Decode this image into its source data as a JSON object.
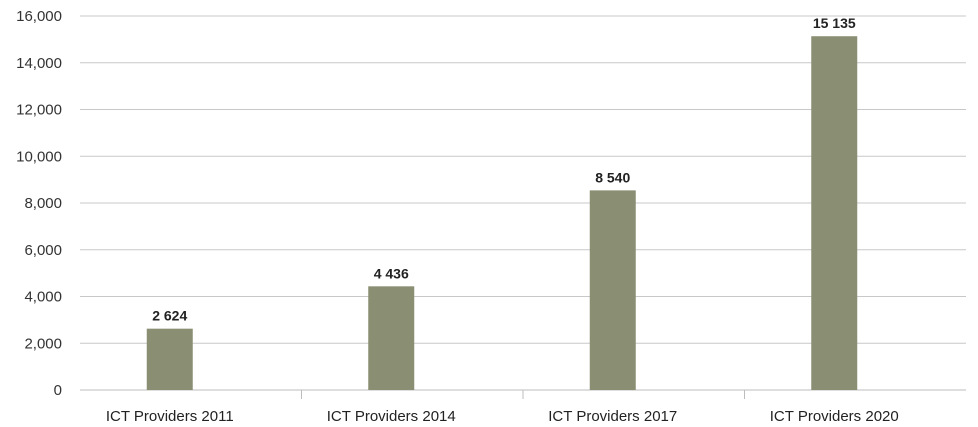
{
  "chart_data": {
    "type": "bar",
    "categories": [
      "ICT Providers 2011",
      "ICT Providers 2014",
      "ICT Providers 2017",
      "ICT Providers 2020"
    ],
    "values": [
      2624,
      4436,
      8540,
      15135
    ],
    "data_labels": [
      "2 624",
      "4 436",
      "8 540",
      "15 135"
    ],
    "y_ticks": [
      0,
      2000,
      4000,
      6000,
      8000,
      10000,
      12000,
      14000,
      16000
    ],
    "y_tick_labels": [
      "0",
      "2,000",
      "4,000",
      "6,000",
      "8,000",
      "10,000",
      "12,000",
      "14,000",
      "16,000"
    ],
    "ylim": [
      0,
      16000
    ],
    "title": "",
    "xlabel": "",
    "ylabel": "",
    "grid": true,
    "legend": "none",
    "bar_color": "#8a8f74"
  }
}
